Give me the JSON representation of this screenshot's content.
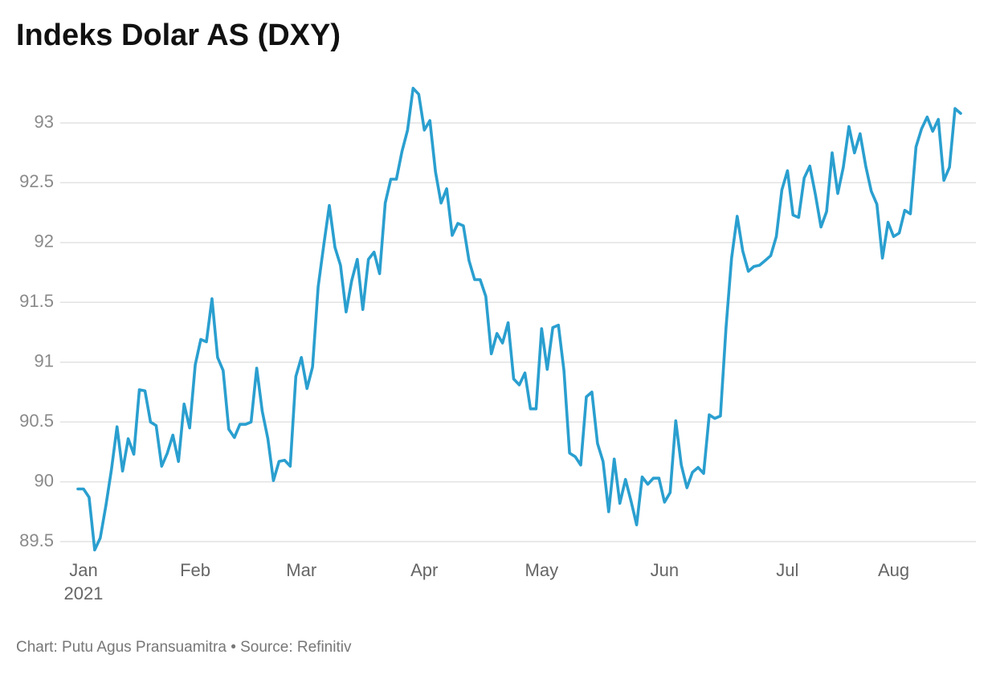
{
  "chart_data": {
    "type": "line",
    "title": "Indeks Dolar AS (DXY)",
    "source": "Chart: Putu Agus Pransuamitra • Source: Refinitiv",
    "x_year_label": "2021",
    "categories": [
      null,
      "Jan",
      null,
      null,
      null,
      null,
      null,
      null,
      null,
      null,
      null,
      null,
      null,
      null,
      null,
      null,
      null,
      null,
      null,
      null,
      null,
      "Feb",
      null,
      null,
      null,
      null,
      null,
      null,
      null,
      null,
      null,
      null,
      null,
      null,
      null,
      null,
      null,
      null,
      null,
      null,
      "Mar",
      null,
      null,
      null,
      null,
      null,
      null,
      null,
      null,
      null,
      null,
      null,
      null,
      null,
      null,
      null,
      null,
      null,
      null,
      null,
      null,
      null,
      "Apr",
      null,
      null,
      null,
      null,
      null,
      null,
      null,
      null,
      null,
      null,
      null,
      null,
      null,
      null,
      null,
      null,
      null,
      null,
      null,
      null,
      "May",
      null,
      null,
      null,
      null,
      null,
      null,
      null,
      null,
      null,
      null,
      null,
      null,
      null,
      null,
      null,
      null,
      null,
      null,
      null,
      null,
      null,
      "Jun",
      null,
      null,
      null,
      null,
      null,
      null,
      null,
      null,
      null,
      null,
      null,
      null,
      null,
      null,
      null,
      null,
      null,
      null,
      null,
      null,
      null,
      "Jul",
      null,
      null,
      null,
      null,
      null,
      null,
      null,
      null,
      null,
      null,
      null,
      null,
      null,
      null,
      null,
      null,
      null,
      null,
      "Aug",
      null,
      null,
      null,
      null,
      null,
      null,
      null,
      null,
      null,
      null,
      null,
      null
    ],
    "series": [
      {
        "name": "DXY",
        "color": "#2a9fcf",
        "values": [
          89.94,
          89.94,
          89.87,
          89.43,
          89.53,
          89.8,
          90.1,
          90.46,
          90.09,
          90.36,
          90.23,
          90.77,
          90.76,
          90.5,
          90.47,
          90.13,
          90.24,
          90.39,
          90.17,
          90.65,
          90.45,
          90.98,
          91.19,
          91.17,
          91.53,
          91.04,
          90.93,
          90.44,
          90.37,
          90.48,
          90.48,
          90.5,
          90.95,
          90.59,
          90.36,
          90.01,
          90.17,
          90.18,
          90.13,
          90.88,
          91.04,
          90.78,
          90.96,
          91.63,
          91.98,
          92.31,
          91.96,
          91.81,
          91.42,
          91.68,
          91.86,
          91.44,
          91.86,
          91.92,
          91.74,
          92.33,
          92.53,
          92.53,
          92.76,
          92.94,
          93.29,
          93.24,
          92.94,
          93.02,
          92.59,
          92.33,
          92.45,
          92.06,
          92.16,
          92.14,
          91.85,
          91.69,
          91.69,
          91.55,
          91.07,
          91.24,
          91.16,
          91.33,
          90.86,
          90.81,
          90.91,
          90.61,
          90.61,
          91.28,
          90.94,
          91.29,
          91.31,
          90.93,
          90.24,
          90.21,
          90.14,
          90.71,
          90.75,
          90.32,
          90.17,
          89.75,
          90.19,
          89.82,
          90.02,
          89.84,
          89.64,
          90.04,
          89.98,
          90.03,
          90.03,
          89.83,
          89.91,
          90.51,
          90.14,
          89.95,
          90.08,
          90.12,
          90.07,
          90.56,
          90.53,
          90.55,
          91.29,
          91.87,
          92.22,
          91.93,
          91.76,
          91.8,
          91.81,
          91.85,
          91.89,
          92.05,
          92.44,
          92.6,
          92.23,
          92.21,
          92.54,
          92.64,
          92.4,
          92.13,
          92.26,
          92.75,
          92.41,
          92.63,
          92.97,
          92.75,
          92.91,
          92.64,
          92.43,
          92.32,
          91.87,
          92.17,
          92.05,
          92.08,
          92.27,
          92.24,
          92.8,
          92.95,
          93.05,
          92.93,
          93.03,
          92.52,
          92.63,
          93.12,
          93.08
        ]
      }
    ],
    "ylim": [
      89.4,
      93.35
    ],
    "yticks": [
      89.5,
      90,
      90.5,
      91,
      91.5,
      92,
      92.5,
      93
    ],
    "grid": true,
    "legend": false
  }
}
